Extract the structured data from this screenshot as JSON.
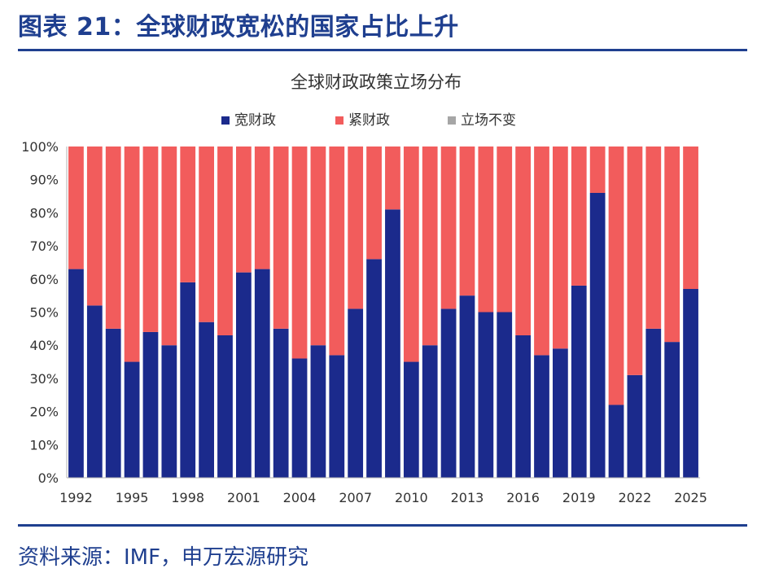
{
  "figure": {
    "title": "图表 21：全球财政宽松的国家占比上升",
    "source": "资料来源：IMF，申万宏源研究"
  },
  "colors": {
    "loose": "#1b2a8c",
    "tight": "#f25c5c",
    "neutral": "#a6a6a6",
    "accent": "#1f3f8f"
  },
  "chart_data": {
    "type": "bar",
    "stacked": true,
    "title": "全球财政政策立场分布",
    "legend_position": "top",
    "categories": [
      "1992",
      "1993",
      "1994",
      "1995",
      "1996",
      "1997",
      "1998",
      "1999",
      "2000",
      "2001",
      "2002",
      "2003",
      "2004",
      "2005",
      "2006",
      "2007",
      "2008",
      "2009",
      "2010",
      "2011",
      "2012",
      "2013",
      "2014",
      "2015",
      "2016",
      "2017",
      "2018",
      "2019",
      "2020",
      "2021",
      "2022",
      "2023",
      "2024",
      "2025"
    ],
    "x_tick_labels": [
      "1992",
      "",
      "",
      "1995",
      "",
      "",
      "1998",
      "",
      "",
      "2001",
      "",
      "",
      "2004",
      "",
      "",
      "2007",
      "",
      "",
      "2010",
      "",
      "",
      "2013",
      "",
      "",
      "2016",
      "",
      "",
      "2019",
      "",
      "",
      "2022",
      "",
      "",
      "2025"
    ],
    "series": [
      {
        "name": "宽财政",
        "values": [
          63,
          52,
          45,
          35,
          44,
          40,
          59,
          47,
          43,
          62,
          63,
          45,
          36,
          40,
          37,
          51,
          66,
          81,
          35,
          40,
          51,
          55,
          50,
          50,
          43,
          37,
          39,
          58,
          86,
          22,
          31,
          45,
          41,
          57
        ]
      },
      {
        "name": "紧财政",
        "values": [
          37,
          48,
          55,
          65,
          56,
          60,
          41,
          53,
          57,
          38,
          37,
          55,
          64,
          60,
          63,
          49,
          34,
          19,
          65,
          60,
          49,
          45,
          50,
          50,
          57,
          63,
          61,
          42,
          14,
          78,
          69,
          55,
          59,
          43
        ]
      },
      {
        "name": "立场不变",
        "values": [
          0,
          0,
          0,
          0,
          0,
          0,
          0,
          0,
          0,
          0,
          0,
          0,
          0,
          0,
          0,
          0,
          0,
          0,
          0,
          0,
          0,
          0,
          0,
          0,
          0,
          0,
          0,
          0,
          0,
          0,
          0,
          0,
          0,
          0
        ]
      }
    ],
    "ylim": [
      0,
      100
    ],
    "y_ticks": [
      "0%",
      "10%",
      "20%",
      "30%",
      "40%",
      "50%",
      "60%",
      "70%",
      "80%",
      "90%",
      "100%"
    ],
    "xlabel": "",
    "ylabel": ""
  }
}
